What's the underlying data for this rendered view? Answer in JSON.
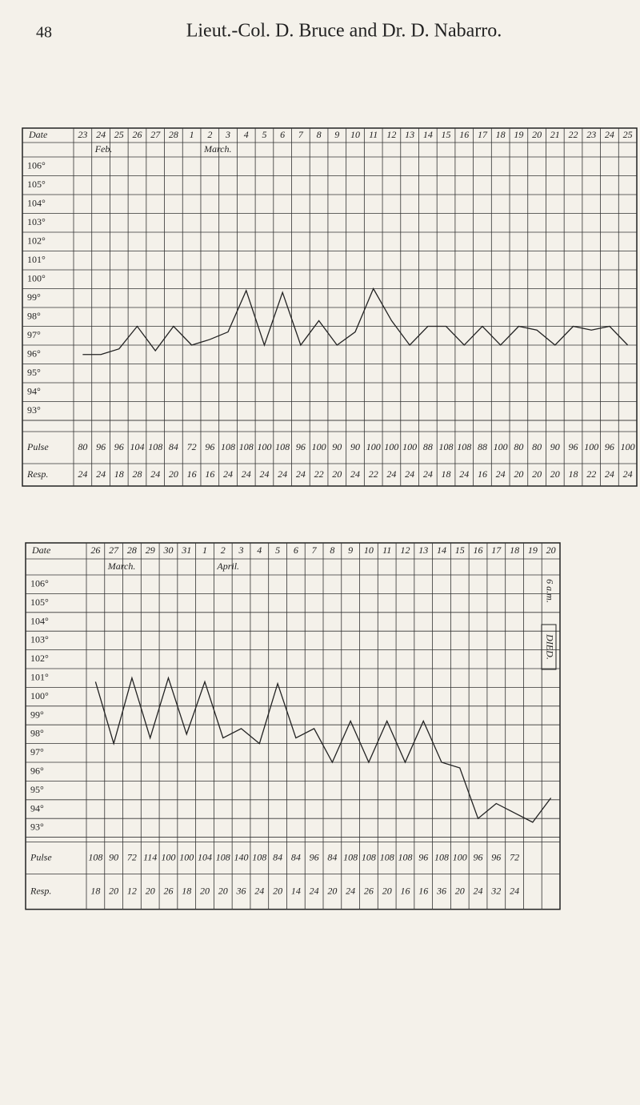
{
  "header": {
    "page_number": "48",
    "running_title": "Lieut.-Col. D. Bruce and Dr. D. Nabarro."
  },
  "chart_data": [
    {
      "type": "line",
      "date_label": "Date",
      "pulse_label": "Pulse",
      "resp_label": "Resp.",
      "months": [
        "Feb.",
        "March."
      ],
      "categories": [
        "23",
        "24",
        "25",
        "26",
        "27",
        "28",
        "1",
        "2",
        "3",
        "4",
        "5",
        "6",
        "7",
        "8",
        "9",
        "10",
        "11",
        "12",
        "13",
        "14",
        "15",
        "16",
        "17",
        "18",
        "19",
        "20",
        "21",
        "22",
        "23",
        "24",
        "25"
      ],
      "ylim": [
        92.5,
        106.5
      ],
      "yticks": [
        {
          "value": 106,
          "label": "106°"
        },
        {
          "value": 105,
          "label": "105°"
        },
        {
          "value": 104,
          "label": "104°"
        },
        {
          "value": 103,
          "label": "103°"
        },
        {
          "value": 102,
          "label": "102°"
        },
        {
          "value": 101,
          "label": "101°"
        },
        {
          "value": 100,
          "label": "100°"
        },
        {
          "value": 99,
          "label": "99°"
        },
        {
          "value": 98,
          "label": "98°"
        },
        {
          "value": 97,
          "label": "97°"
        },
        {
          "value": 96,
          "label": "96°"
        },
        {
          "value": 95,
          "label": "95°"
        },
        {
          "value": 94,
          "label": "94°"
        },
        {
          "value": 93,
          "label": "93°"
        }
      ],
      "series": [
        {
          "name": "Temperature",
          "color": "#222222",
          "values": [
            96,
            96,
            96.3,
            97.5,
            96.2,
            97.5,
            96.5,
            96.8,
            97.2,
            99.4,
            96.5,
            99.3,
            96.5,
            97.8,
            96.5,
            97.2,
            99.5,
            97.8,
            96.5,
            97.5,
            97.5,
            96.5,
            97.5,
            96.5,
            97.5,
            97.3,
            96.5,
            97.5,
            97.3,
            97.5,
            96.5
          ]
        }
      ],
      "pulse": [
        80,
        96,
        96,
        104,
        108,
        84,
        72,
        96,
        108,
        108,
        100,
        108,
        96,
        100,
        90,
        90,
        100,
        100,
        100,
        88,
        108,
        108,
        88,
        100,
        80,
        80,
        90,
        96,
        100,
        96,
        100
      ],
      "resp": [
        24,
        24,
        18,
        28,
        24,
        20,
        16,
        16,
        24,
        24,
        24,
        24,
        24,
        22,
        20,
        24,
        22,
        24,
        24,
        24,
        18,
        24,
        16,
        24,
        20,
        20,
        20,
        18,
        22,
        24,
        24
      ]
    },
    {
      "type": "line",
      "date_label": "Date",
      "pulse_label": "Pulse",
      "resp_label": "Resp.",
      "months": [
        "March.",
        "April."
      ],
      "annotations": [
        "6 a.m.",
        "DIED."
      ],
      "categories": [
        "26",
        "27",
        "28",
        "29",
        "30",
        "31",
        "1",
        "2",
        "3",
        "4",
        "5",
        "6",
        "7",
        "8",
        "9",
        "10",
        "11",
        "12",
        "13",
        "14",
        "15",
        "16",
        "17",
        "18",
        "19",
        "20"
      ],
      "ylim": [
        92.5,
        106.5
      ],
      "yticks": [
        {
          "value": 106,
          "label": "106°"
        },
        {
          "value": 105,
          "label": "105°"
        },
        {
          "value": 104,
          "label": "104°"
        },
        {
          "value": 103,
          "label": "103°"
        },
        {
          "value": 102,
          "label": "102°"
        },
        {
          "value": 101,
          "label": "101°"
        },
        {
          "value": 100,
          "label": "100°"
        },
        {
          "value": 99,
          "label": "99°"
        },
        {
          "value": 98,
          "label": "98°"
        },
        {
          "value": 97,
          "label": "97°"
        },
        {
          "value": 96,
          "label": "96°"
        },
        {
          "value": 95,
          "label": "95°"
        },
        {
          "value": 94,
          "label": "94°"
        },
        {
          "value": 93,
          "label": "93°"
        }
      ],
      "series": [
        {
          "name": "Temperature",
          "color": "#222222",
          "values": [
            100.8,
            97.5,
            101,
            97.8,
            101,
            98,
            100.8,
            97.8,
            98.3,
            97.5,
            100.7,
            97.8,
            98.3,
            96.5,
            98.7,
            96.5,
            98.7,
            96.5,
            98.7,
            96.5,
            96.2,
            93.5,
            94.3,
            93.8,
            93.3,
            94.6
          ]
        }
      ],
      "pulse": [
        108,
        90,
        72,
        114,
        100,
        100,
        104,
        108,
        140,
        108,
        84,
        84,
        96,
        84,
        108,
        108,
        108,
        108,
        96,
        108,
        100,
        96,
        96,
        72,
        null,
        null
      ],
      "resp": [
        18,
        20,
        12,
        20,
        26,
        18,
        20,
        20,
        36,
        24,
        20,
        14,
        24,
        20,
        24,
        26,
        20,
        16,
        16,
        36,
        20,
        24,
        32,
        24,
        null,
        null
      ]
    }
  ]
}
